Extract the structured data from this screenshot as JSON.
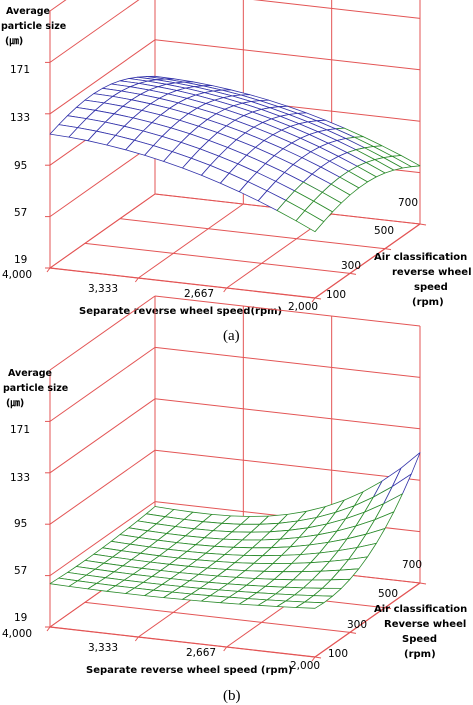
{
  "chart_data": [
    {
      "type": "surface3d",
      "caption": "(a)",
      "zlabel": [
        "Average",
        "particle size",
        "(㎛)"
      ],
      "xlabel": "Separate reverse wheel speed(rpm)",
      "ylabel": [
        "Air classification",
        "reverse wheel",
        "speed",
        "(rpm)"
      ],
      "z_ticks": [
        "19",
        "57",
        "95",
        "133",
        "171"
      ],
      "x_ticks": [
        "4,000",
        "3,333",
        "2,667",
        "2,000"
      ],
      "y_ticks": [
        "100",
        "300",
        "500",
        "700"
      ],
      "zlim": [
        19,
        209
      ],
      "xlim": [
        2000,
        4000
      ],
      "ylim": [
        100,
        700
      ],
      "x": [
        4000,
        3333,
        2667,
        2000
      ],
      "y": [
        100,
        300,
        500,
        700
      ],
      "z_description": "surface peaks near 120 at high separate speed and low air speed, falling to ~70 at low separate speed / high air speed",
      "surface_color": "#3333aa",
      "surface_color_low": "#2a8a2a"
    },
    {
      "type": "surface3d",
      "caption": "(b)",
      "zlabel": [
        "Average",
        "particle size",
        "(㎛)"
      ],
      "xlabel": "Separate reverse wheel speed (rpm)",
      "ylabel": [
        "Air classification",
        "Reverse wheel",
        "Speed",
        "(rpm)"
      ],
      "z_ticks": [
        "19",
        "57",
        "95",
        "133",
        "171"
      ],
      "x_ticks": [
        "4,000",
        "3,333",
        "2,667",
        "2,000"
      ],
      "y_ticks": [
        "100",
        "300",
        "500",
        "700"
      ],
      "zlim": [
        19,
        209
      ],
      "xlim": [
        2000,
        4000
      ],
      "ylim": [
        100,
        700
      ],
      "x": [
        4000,
        3333,
        2667,
        2000
      ],
      "y": [
        100,
        300,
        500,
        700
      ],
      "z_description": "bowl-shaped surface, ~50 at most points, rising to ~105 at separate speed 2000 rpm and air speed 700 rpm",
      "surface_color": "#2a8a2a",
      "surface_color_high": "#3333aa"
    }
  ]
}
